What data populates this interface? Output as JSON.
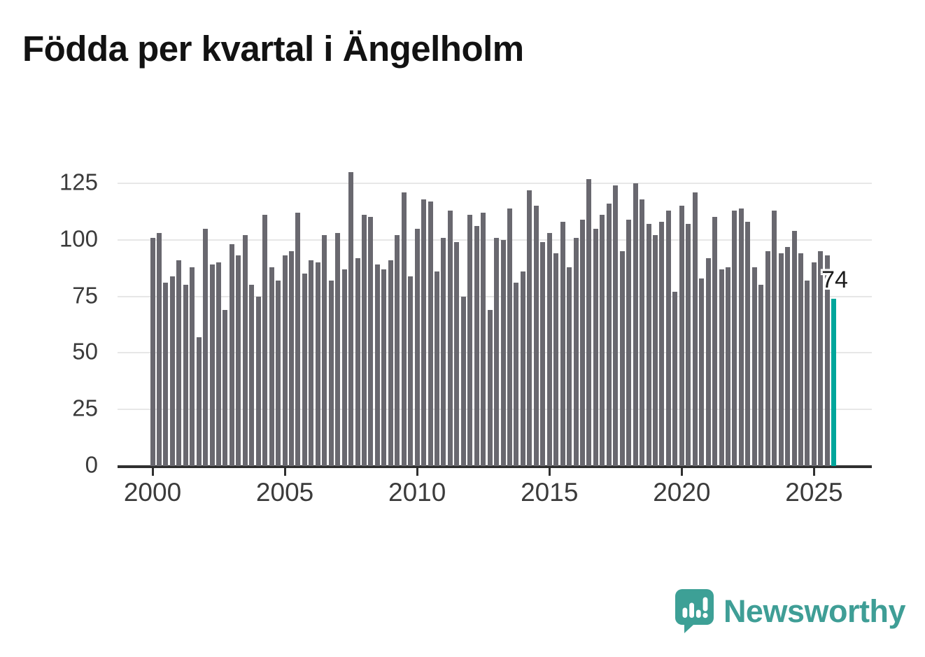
{
  "title": {
    "text": "Födda per kvartal i Ängelholm",
    "color": "#121212"
  },
  "chart_data": {
    "type": "bar",
    "title": "Födda per kvartal i Ängelholm",
    "x_start": "2000-Q1",
    "x_end": "2025-Q4",
    "frequency": "quarterly",
    "values": [
      101,
      103,
      81,
      84,
      91,
      80,
      88,
      57,
      105,
      89,
      90,
      69,
      98,
      93,
      102,
      80,
      75,
      111,
      88,
      82,
      93,
      95,
      112,
      85,
      91,
      90,
      102,
      82,
      103,
      87,
      130,
      92,
      111,
      110,
      89,
      87,
      91,
      102,
      121,
      84,
      105,
      118,
      117,
      86,
      101,
      113,
      99,
      75,
      111,
      106,
      112,
      69,
      101,
      100,
      114,
      81,
      86,
      122,
      115,
      99,
      103,
      94,
      108,
      88,
      101,
      109,
      127,
      105,
      111,
      116,
      124,
      95,
      109,
      125,
      118,
      107,
      102,
      108,
      113,
      77,
      115,
      107,
      121,
      83,
      92,
      110,
      87,
      88,
      113,
      114,
      108,
      88,
      80,
      95,
      113,
      94,
      97,
      104,
      94,
      82,
      90,
      95,
      93,
      74
    ],
    "x_tick_labels": [
      "2000",
      "2005",
      "2010",
      "2015",
      "2020",
      "2025"
    ],
    "x_tick_indices": [
      0,
      20,
      40,
      60,
      80,
      100
    ],
    "y_ticks": [
      0,
      25,
      50,
      75,
      100,
      125
    ],
    "y_tick_labels": [
      "0",
      "25",
      "50",
      "75",
      "100",
      "125"
    ],
    "ylim": [
      0,
      132
    ],
    "grid": true,
    "legend": "none",
    "bar_color": "#69686F",
    "gridline_color": "#e7e7e7",
    "axis_color": "#2f2f2f",
    "highlight": {
      "index": 103,
      "quarter": "2025-Q4",
      "value": 74,
      "label": "74",
      "color": "#00A69B"
    }
  },
  "branding": {
    "wordmark": "Newsworthy",
    "teal": "#3F9E96",
    "icon": "newsworthy-speech-bubble-chart-icon"
  }
}
